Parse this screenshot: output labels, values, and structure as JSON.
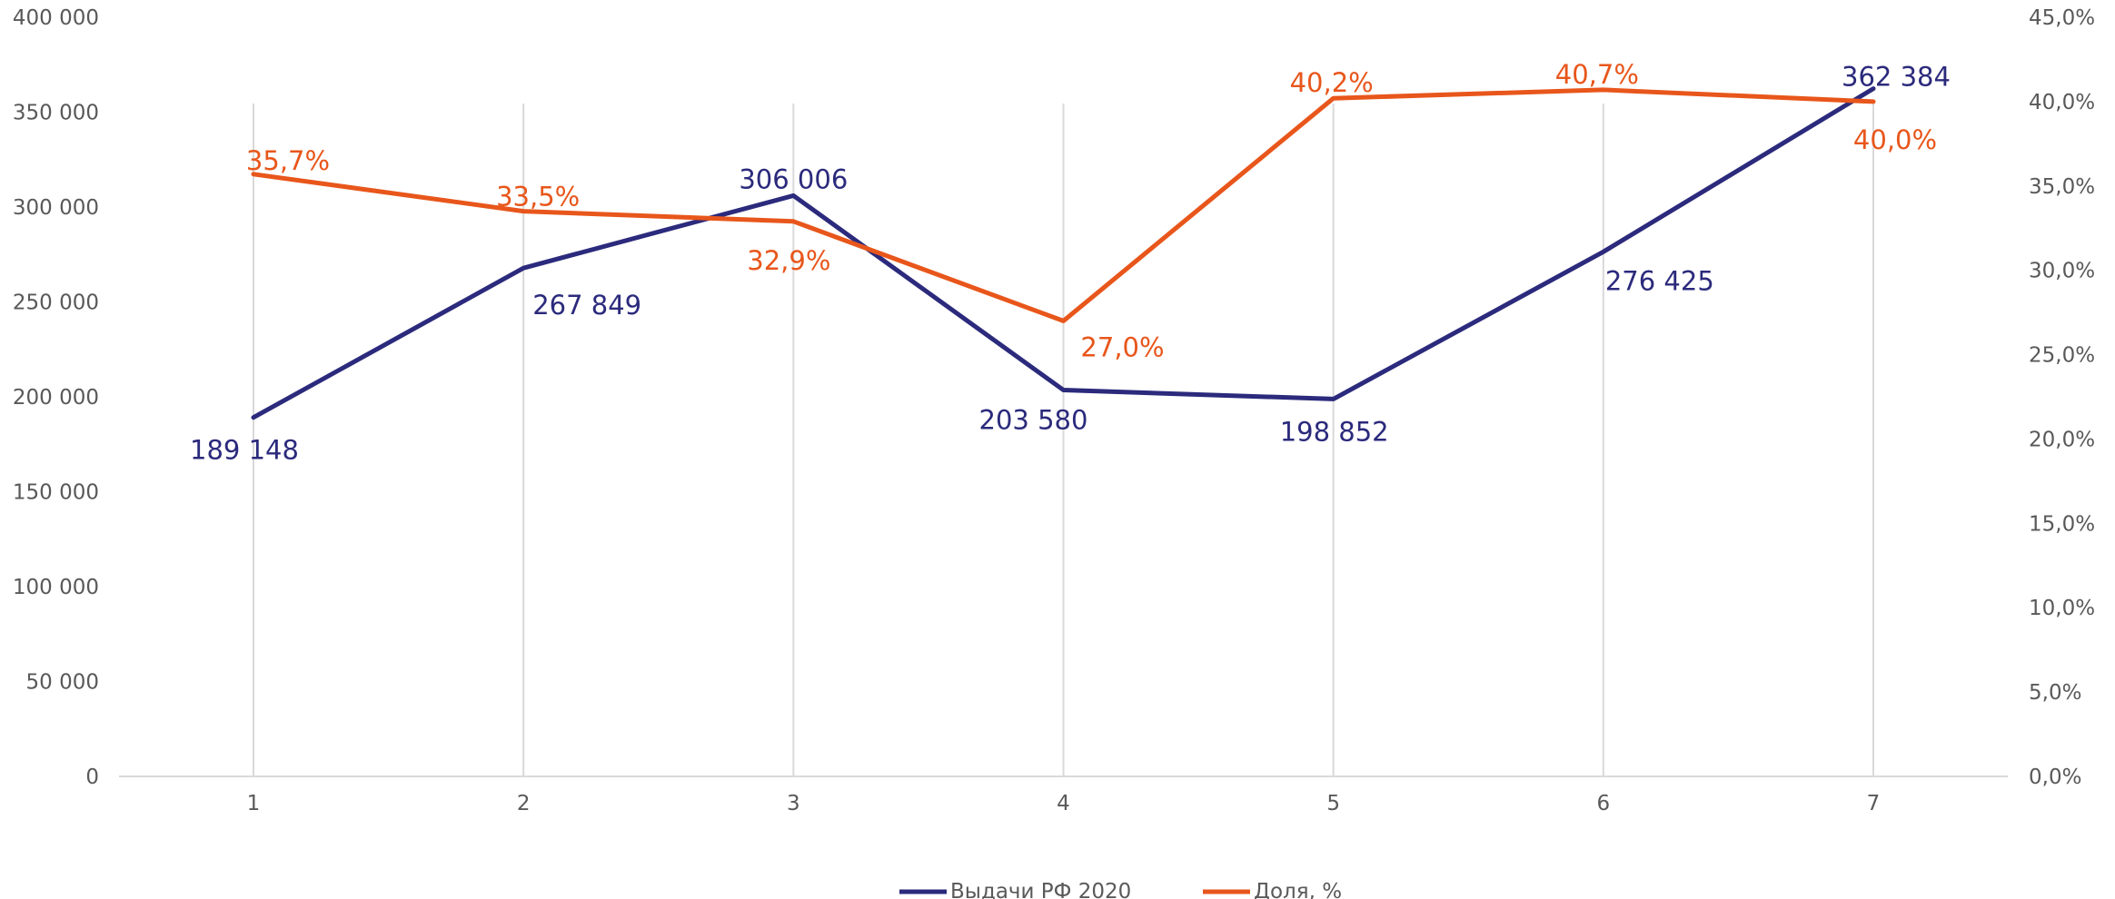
{
  "chart_data": {
    "type": "line",
    "title": "",
    "xlabel": "",
    "ylabel": "",
    "categories": [
      "1",
      "2",
      "3",
      "4",
      "5",
      "6",
      "7"
    ],
    "y_left": {
      "range": [
        0,
        400000
      ],
      "step": 50000,
      "tick_labels": [
        "0",
        "50 000",
        "100 000",
        "150 000",
        "200 000",
        "250 000",
        "300 000",
        "350 000",
        "400 000"
      ]
    },
    "y_right": {
      "range": [
        0,
        45
      ],
      "step": 5,
      "tick_labels": [
        "0,0%",
        "5,0%",
        "10,0%",
        "15,0%",
        "20,0%",
        "25,0%",
        "30,0%",
        "35,0%",
        "40,0%",
        "45,0%"
      ]
    },
    "grid": "vertical",
    "legend_position": "bottom-center",
    "series": [
      {
        "name": "Выдачи РФ 2020",
        "axis": "left",
        "color": "#2b2a7c",
        "values": [
          189148,
          267849,
          306006,
          203580,
          198852,
          276425,
          362384
        ],
        "labels": [
          "189 148",
          "267 849",
          "306 006",
          "203 580",
          "198 852",
          "276 425",
          "362 384"
        ]
      },
      {
        "name": "Доля, %",
        "axis": "right",
        "color": "#e8561b",
        "values": [
          35.7,
          33.5,
          32.9,
          27.0,
          40.2,
          40.7,
          40.0
        ],
        "labels": [
          "35,7%",
          "33,5%",
          "32,9%",
          "27,0%",
          "40,2%",
          "40,7%",
          "40,0%"
        ]
      }
    ]
  }
}
